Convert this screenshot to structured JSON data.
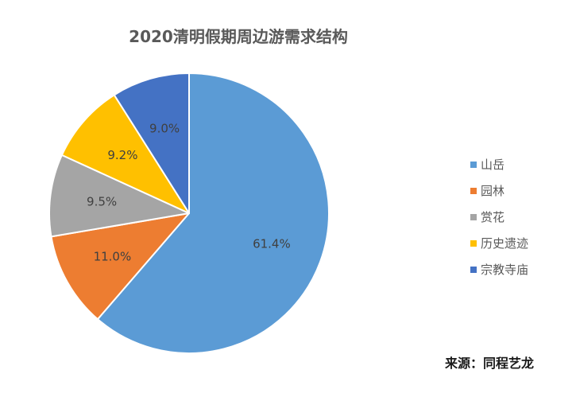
{
  "chart_data": {
    "type": "pie",
    "title": "2020清明假期周边游需求结构",
    "categories": [
      "山岳",
      "园林",
      "赏花",
      "历史遗迹",
      "宗教寺庙"
    ],
    "values": [
      61.4,
      11.0,
      9.5,
      9.2,
      9.0
    ],
    "value_labels": [
      "61.4%",
      "11.0%",
      "9.5%",
      "9.2%",
      "9.0%"
    ],
    "colors": [
      "#5B9BD5",
      "#ED7D31",
      "#A5A5A5",
      "#FFC000",
      "#4472C4"
    ],
    "start_angle": "12 o'clock",
    "direction": "clockwise",
    "legend_position": "right",
    "legend_marker": "square"
  },
  "source": "来源：同程艺龙"
}
